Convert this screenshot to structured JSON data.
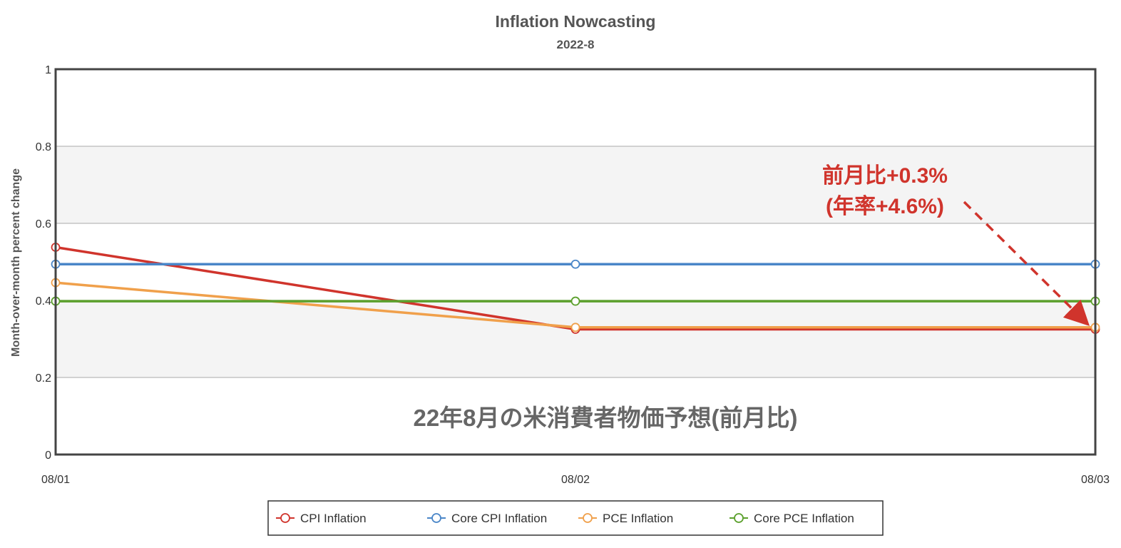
{
  "chart_data": {
    "type": "line",
    "title": "Inflation Nowcasting",
    "subtitle": "2022-8",
    "xlabel": "",
    "ylabel": "Month-over-month percent change",
    "categories": [
      "08/01",
      "08/02",
      "08/03"
    ],
    "ylim": [
      0,
      1
    ],
    "yticks": [
      "0",
      "0.2",
      "0.4",
      "0.6",
      "0.8",
      "1"
    ],
    "grid": true,
    "legend_position": "bottom",
    "series": [
      {
        "name": "CPI Inflation",
        "values": [
          0.538,
          0.325,
          0.325
        ],
        "color": "#d0342c"
      },
      {
        "name": "Core CPI Inflation",
        "values": [
          0.494,
          0.494,
          0.494
        ],
        "color": "#4a86c8"
      },
      {
        "name": "PCE Inflation",
        "values": [
          0.446,
          0.33,
          0.33
        ],
        "color": "#f0a04b"
      },
      {
        "name": "Core PCE Inflation",
        "values": [
          0.398,
          0.398,
          0.398
        ],
        "color": "#5ba02c"
      }
    ],
    "annotations": {
      "center_text": "22年8月の米消費者物価予想(前月比)",
      "callout_line1": "前月比+0.3%",
      "callout_line2": "(年率+4.6%)"
    }
  }
}
